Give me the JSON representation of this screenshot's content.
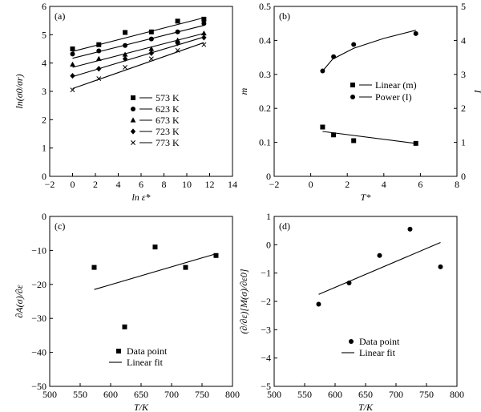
{
  "chart_data": [
    {
      "panel": "(a)",
      "type": "scatter",
      "xlabel": "ln ε̇*",
      "ylabel": "ln(σ0/σr)",
      "xlim": [
        -2,
        14
      ],
      "ylim": [
        0,
        6
      ],
      "xticks": [
        -2,
        0,
        2,
        4,
        6,
        8,
        10,
        12,
        14
      ],
      "yticks": [
        0,
        1,
        2,
        3,
        4,
        5,
        6
      ],
      "legend_position": "center-right",
      "series": [
        {
          "name": "573 K",
          "marker": "square",
          "x": [
            0,
            2.3,
            4.6,
            6.9,
            9.2,
            11.5
          ],
          "y": [
            4.5,
            4.65,
            5.08,
            5.1,
            5.48,
            5.55
          ],
          "fit": [
            [
              0,
              4.41
            ],
            [
              11.5,
              5.6
            ]
          ]
        },
        {
          "name": "623 K",
          "marker": "circle",
          "x": [
            0,
            2.3,
            4.6,
            6.9,
            9.2,
            11.5
          ],
          "y": [
            4.32,
            4.43,
            4.62,
            4.85,
            5.1,
            5.4
          ],
          "fit": [
            [
              0,
              4.17
            ],
            [
              11.5,
              5.33
            ]
          ]
        },
        {
          "name": "673 K",
          "marker": "triangle",
          "x": [
            0,
            2.3,
            4.6,
            6.9,
            9.2,
            11.5
          ],
          "y": [
            3.95,
            4.15,
            4.3,
            4.5,
            4.8,
            5.05
          ],
          "fit": [
            [
              0,
              3.85
            ],
            [
              11.5,
              5.05
            ]
          ]
        },
        {
          "name": "723 K",
          "marker": "diamond",
          "x": [
            0,
            2.3,
            4.6,
            6.9,
            9.2,
            11.5
          ],
          "y": [
            3.55,
            3.8,
            4.15,
            4.35,
            4.7,
            4.9
          ],
          "fit": [
            [
              0,
              3.52
            ],
            [
              11.5,
              4.92
            ]
          ]
        },
        {
          "name": "773 K",
          "marker": "cross",
          "x": [
            0,
            2.3,
            4.6,
            6.9,
            9.2,
            11.5
          ],
          "y": [
            3.05,
            3.45,
            3.85,
            4.15,
            4.45,
            4.65
          ],
          "fit": [
            [
              0,
              3.1
            ],
            [
              11.5,
              4.72
            ]
          ]
        }
      ]
    },
    {
      "panel": "(b)",
      "type": "scatter",
      "xlabel": "T*",
      "ylabel": "m",
      "ylabel_right": "I",
      "xlim": [
        -2,
        8
      ],
      "ylim": [
        0,
        0.5
      ],
      "ylim_right": [
        0,
        5
      ],
      "xticks": [
        -2,
        0,
        2,
        4,
        6,
        8
      ],
      "yticks": [
        0,
        0.1,
        0.2,
        0.3,
        0.4,
        0.5
      ],
      "yticks_right": [
        0,
        1,
        2,
        3,
        4,
        5
      ],
      "legend_position": "center-right",
      "series": [
        {
          "name": "Linear (m)",
          "marker": "square",
          "x": [
            0.65,
            1.25,
            2.35,
            5.75
          ],
          "y": [
            0.145,
            0.122,
            0.105,
            0.097
          ],
          "fit": [
            [
              0.65,
              0.132
            ],
            [
              5.75,
              0.097
            ]
          ]
        },
        {
          "name": "Power (I)",
          "marker": "circle",
          "x": [
            0.65,
            1.25,
            2.35,
            5.75
          ],
          "y": [
            3.1,
            3.52,
            3.88,
            4.2
          ],
          "fit": [
            [
              0.65,
              3.1
            ],
            [
              1.2,
              3.45
            ],
            [
              2.35,
              3.77
            ],
            [
              4,
              4.06
            ],
            [
              5.75,
              4.3
            ]
          ]
        }
      ]
    },
    {
      "panel": "(c)",
      "type": "scatter",
      "xlabel": "T/K",
      "ylabel": "∂A(σ)/∂ε",
      "xlim": [
        500,
        800
      ],
      "ylim": [
        -50,
        0
      ],
      "xticks": [
        500,
        550,
        600,
        650,
        700,
        750,
        800
      ],
      "yticks": [
        -50,
        -40,
        -30,
        -20,
        -10,
        0
      ],
      "legend_position": "bottom-left",
      "series": [
        {
          "name": "Data point",
          "marker": "square",
          "x": [
            573,
            623,
            673,
            723,
            773
          ],
          "y": [
            -15,
            -32.5,
            -9,
            -15,
            -11.5
          ],
          "fit": [
            [
              573,
              -21.5
            ],
            [
              773,
              -11
            ]
          ]
        }
      ],
      "legend_labels": [
        "Data point",
        "Linear fit"
      ]
    },
    {
      "panel": "(d)",
      "type": "scatter",
      "xlabel": "T/K",
      "ylabel": "(∂/∂ε)[M(σ)/∂ε̇0]",
      "xlim": [
        500,
        800
      ],
      "ylim": [
        -5,
        1
      ],
      "xticks": [
        500,
        550,
        600,
        650,
        700,
        750,
        800
      ],
      "yticks": [
        -5,
        -4,
        -3,
        -2,
        -1,
        0,
        1
      ],
      "legend_position": "center",
      "series": [
        {
          "name": "Data point",
          "marker": "circle",
          "x": [
            573,
            623,
            673,
            723,
            773
          ],
          "y": [
            -2.1,
            -1.35,
            -0.38,
            0.55,
            -0.78
          ],
          "fit": [
            [
              573,
              -1.75
            ],
            [
              773,
              0.08
            ]
          ]
        }
      ],
      "legend_labels": [
        "Data point",
        "Linear fit"
      ]
    }
  ]
}
